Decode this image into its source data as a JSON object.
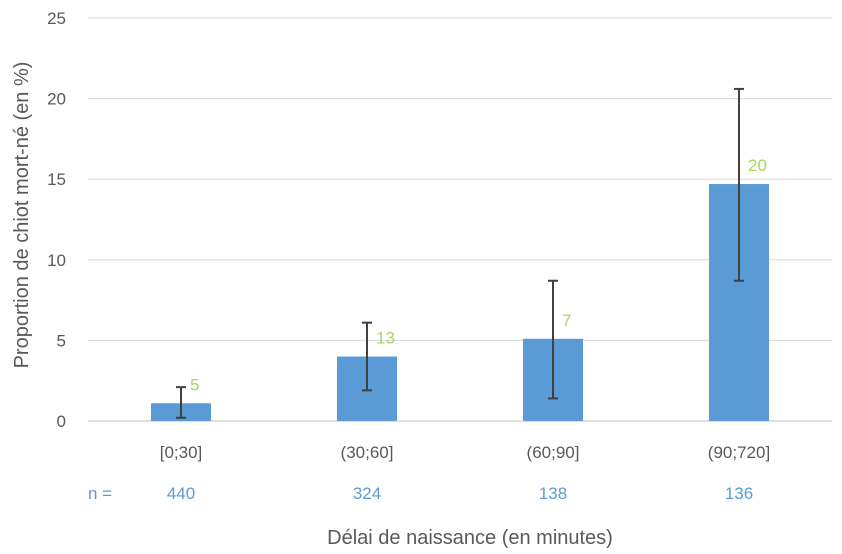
{
  "chart_data": {
    "type": "bar",
    "categories": [
      "[0;30]",
      "(30;60]",
      "(60;90]",
      "(90;720]"
    ],
    "values": [
      1.1,
      4.0,
      5.1,
      14.7
    ],
    "error_low": [
      0.2,
      1.9,
      1.4,
      8.7
    ],
    "error_high": [
      2.1,
      6.1,
      8.7,
      20.6
    ],
    "data_labels": [
      "5",
      "13",
      "7",
      "20"
    ],
    "n_label": "n =",
    "n_values": [
      "440",
      "324",
      "138",
      "136"
    ],
    "ylabel": "Proportion de chiot mort-né (en %)",
    "xlabel": "Délai de naissance (en minutes)",
    "ylim": [
      0,
      25
    ],
    "yticks": [
      0,
      5,
      10,
      15,
      20,
      25
    ],
    "grid": true,
    "bar_color": "#5b9bd5",
    "label_color": "#a6d65a"
  }
}
